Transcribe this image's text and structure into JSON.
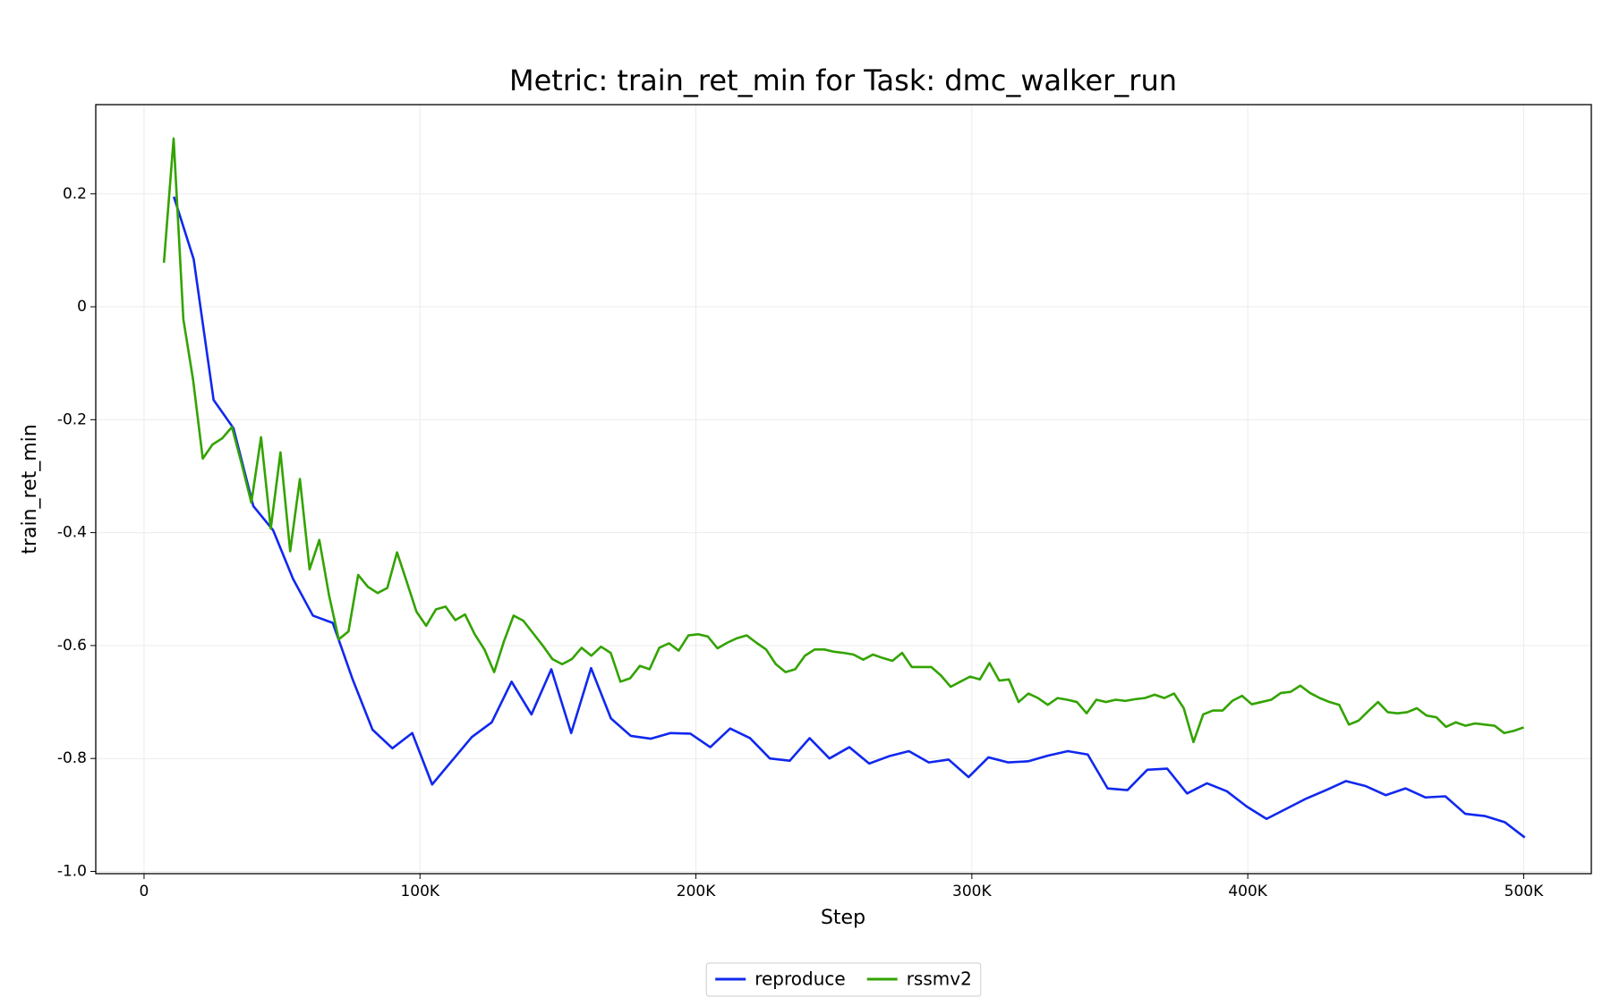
{
  "chart_data": {
    "type": "line",
    "title": "Metric: train_ret_min for Task: dmc_walker_run",
    "x_label": "Step",
    "y_label": "train_ret_min",
    "xlim": [
      -17500,
      524500
    ],
    "ylim": [
      -1.004,
      0.358
    ],
    "xticks": [
      0,
      {
        "value": 100000,
        "label": "100K"
      },
      {
        "value": 200000,
        "label": "200K"
      },
      {
        "value": 300000,
        "label": "300K"
      },
      {
        "value": 400000,
        "label": "400K"
      },
      {
        "value": 500000,
        "label": "500K"
      }
    ],
    "yticks": [
      {
        "value": -1,
        "label": "-1.0"
      },
      -0.8,
      -0.6,
      -0.4,
      -0.2,
      0,
      0.2
    ],
    "grid": true,
    "legend": "bottom",
    "series": [
      {
        "name": "reproduce",
        "color": "#1028ee",
        "x": [
          10800,
          18000,
          25200,
          32400,
          39600,
          46800,
          54000,
          61200,
          68400,
          75600,
          82800,
          90000,
          97200,
          104400,
          111600,
          118800,
          126000,
          133200,
          140400,
          147600,
          154800,
          162000,
          169200,
          176400,
          183600,
          190800,
          198000,
          205200,
          212400,
          219600,
          226800,
          234000,
          241200,
          248400,
          255600,
          262800,
          270000,
          277200,
          284400,
          291600,
          298800,
          306000,
          313200,
          320400,
          327600,
          334800,
          342000,
          349200,
          356400,
          363600,
          370800,
          378000,
          385200,
          392400,
          399600,
          406800,
          414000,
          421200,
          428400,
          435600,
          442800,
          450000,
          457200,
          464400,
          471600,
          478800,
          486000,
          493200,
          500400
        ],
        "values": [
          0.195,
          0.084,
          -0.165,
          -0.215,
          -0.353,
          -0.396,
          -0.482,
          -0.547,
          -0.56,
          -0.66,
          -0.749,
          -0.782,
          -0.755,
          -0.846,
          -0.804,
          -0.762,
          -0.736,
          -0.664,
          -0.722,
          -0.642,
          -0.755,
          -0.64,
          -0.729,
          -0.76,
          -0.765,
          -0.755,
          -0.756,
          -0.78,
          -0.747,
          -0.764,
          -0.8,
          -0.804,
          -0.764,
          -0.8,
          -0.78,
          -0.809,
          -0.796,
          -0.787,
          -0.807,
          -0.802,
          -0.833,
          -0.798,
          -0.807,
          -0.805,
          -0.795,
          -0.787,
          -0.793,
          -0.853,
          -0.856,
          -0.82,
          -0.818,
          -0.862,
          -0.844,
          -0.858,
          -0.885,
          -0.907,
          -0.889,
          -0.871,
          -0.856,
          -0.84,
          -0.849,
          -0.865,
          -0.853,
          -0.869,
          -0.867,
          -0.898,
          -0.902,
          -0.913,
          -0.94
        ]
      },
      {
        "name": "rssmv2",
        "color": "#33a300",
        "x": [
          7200,
          10720,
          14240,
          17760,
          21280,
          24800,
          28320,
          31840,
          35360,
          38880,
          42400,
          45920,
          49440,
          52960,
          56480,
          60000,
          63520,
          67040,
          70560,
          74080,
          77600,
          81120,
          84640,
          88160,
          91680,
          95200,
          98720,
          102240,
          105760,
          109280,
          112800,
          116320,
          119840,
          123360,
          126880,
          130400,
          133920,
          137440,
          140960,
          144480,
          148000,
          151520,
          155040,
          158560,
          162080,
          165600,
          169120,
          172640,
          176160,
          179680,
          183200,
          186720,
          190240,
          193760,
          197280,
          200800,
          204320,
          207840,
          211360,
          214880,
          218400,
          221920,
          225440,
          228960,
          232480,
          236000,
          239520,
          243040,
          246560,
          250080,
          253600,
          257120,
          260640,
          264160,
          267680,
          271200,
          274720,
          278240,
          281760,
          285280,
          288800,
          292320,
          295840,
          299360,
          302880,
          306400,
          309920,
          313440,
          316960,
          320480,
          324000,
          327520,
          331040,
          334560,
          338080,
          341600,
          345120,
          348640,
          352160,
          355680,
          359200,
          362720,
          366240,
          369760,
          373280,
          376800,
          380320,
          383840,
          387360,
          390880,
          394400,
          397920,
          401440,
          404960,
          408480,
          412000,
          415520,
          419040,
          422560,
          426080,
          429600,
          433120,
          436640,
          440160,
          443680,
          447200,
          450720,
          454240,
          457760,
          461280,
          464800,
          468320,
          471840,
          475360,
          478880,
          482400,
          485920,
          489440,
          492960,
          496480,
          500000
        ],
        "values": [
          0.078,
          0.298,
          -0.022,
          -0.129,
          -0.269,
          -0.244,
          -0.233,
          -0.213,
          -0.278,
          -0.347,
          -0.231,
          -0.393,
          -0.258,
          -0.433,
          -0.305,
          -0.465,
          -0.413,
          -0.511,
          -0.589,
          -0.575,
          -0.475,
          -0.496,
          -0.507,
          -0.498,
          -0.435,
          -0.487,
          -0.54,
          -0.565,
          -0.536,
          -0.531,
          -0.555,
          -0.545,
          -0.58,
          -0.607,
          -0.647,
          -0.593,
          -0.547,
          -0.556,
          -0.578,
          -0.6,
          -0.624,
          -0.633,
          -0.624,
          -0.604,
          -0.618,
          -0.602,
          -0.613,
          -0.664,
          -0.658,
          -0.636,
          -0.642,
          -0.604,
          -0.596,
          -0.609,
          -0.582,
          -0.58,
          -0.584,
          -0.605,
          -0.595,
          -0.587,
          -0.582,
          -0.595,
          -0.607,
          -0.633,
          -0.647,
          -0.642,
          -0.618,
          -0.607,
          -0.607,
          -0.611,
          -0.613,
          -0.616,
          -0.625,
          -0.616,
          -0.622,
          -0.627,
          -0.613,
          -0.638,
          -0.638,
          -0.638,
          -0.653,
          -0.673,
          -0.664,
          -0.655,
          -0.66,
          -0.631,
          -0.662,
          -0.66,
          -0.7,
          -0.685,
          -0.693,
          -0.705,
          -0.693,
          -0.696,
          -0.7,
          -0.72,
          -0.696,
          -0.7,
          -0.696,
          -0.698,
          -0.695,
          -0.693,
          -0.687,
          -0.693,
          -0.685,
          -0.711,
          -0.771,
          -0.722,
          -0.715,
          -0.715,
          -0.698,
          -0.689,
          -0.704,
          -0.7,
          -0.696,
          -0.684,
          -0.682,
          -0.671,
          -0.684,
          -0.693,
          -0.7,
          -0.705,
          -0.74,
          -0.733,
          -0.716,
          -0.7,
          -0.718,
          -0.72,
          -0.718,
          -0.711,
          -0.724,
          -0.727,
          -0.744,
          -0.736,
          -0.742,
          -0.738,
          -0.74,
          -0.742,
          -0.755,
          -0.751,
          -0.745
        ]
      }
    ]
  }
}
